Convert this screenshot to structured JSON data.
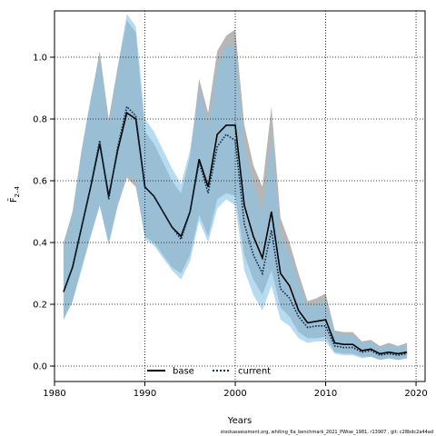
{
  "chart_data": {
    "type": "line",
    "xlabel": "Years",
    "ylabel": "F̄",
    "ylabel_sub": "2–4",
    "xlim": [
      1980,
      2021
    ],
    "ylim": [
      -0.05,
      1.15
    ],
    "xticks": [
      1980,
      1990,
      2000,
      2010,
      2020
    ],
    "yticks": [
      0.0,
      0.2,
      0.4,
      0.6,
      0.8,
      1.0
    ],
    "ytick_labels": [
      "0.0",
      "0.2",
      "0.4",
      "0.6",
      "0.8",
      "1.0"
    ],
    "grid": true,
    "legend_position": "bottom-center",
    "years": [
      1981,
      1982,
      1983,
      1984,
      1985,
      1986,
      1987,
      1988,
      1989,
      1990,
      1991,
      1992,
      1993,
      1994,
      1995,
      1996,
      1997,
      1998,
      1999,
      2000,
      2001,
      2002,
      2003,
      2004,
      2005,
      2006,
      2007,
      2008,
      2009,
      2010,
      2011,
      2012,
      2013,
      2014,
      2015,
      2016,
      2017,
      2018,
      2019
    ],
    "series": [
      {
        "name": "base",
        "color": "#000000",
        "band_color": "#a9a9a9",
        "style": "solid",
        "values": [
          0.24,
          0.32,
          0.45,
          0.58,
          0.72,
          0.55,
          0.7,
          0.82,
          0.8,
          0.58,
          0.55,
          0.5,
          0.45,
          0.42,
          0.5,
          0.67,
          0.58,
          0.75,
          0.78,
          0.78,
          0.52,
          0.42,
          0.35,
          0.5,
          0.3,
          0.26,
          0.18,
          0.14,
          0.145,
          0.15,
          0.075,
          0.07,
          0.07,
          0.05,
          0.055,
          0.04,
          0.045,
          0.04,
          0.045
        ],
        "upper": [
          0.4,
          0.5,
          0.7,
          0.86,
          1.02,
          0.8,
          0.97,
          1.12,
          1.08,
          0.76,
          0.72,
          0.66,
          0.6,
          0.56,
          0.68,
          0.93,
          0.82,
          1.02,
          1.07,
          1.09,
          0.78,
          0.65,
          0.58,
          0.84,
          0.48,
          0.4,
          0.3,
          0.21,
          0.22,
          0.235,
          0.115,
          0.11,
          0.11,
          0.08,
          0.085,
          0.065,
          0.075,
          0.065,
          0.075
        ],
        "lower": [
          0.15,
          0.21,
          0.32,
          0.42,
          0.52,
          0.4,
          0.52,
          0.61,
          0.58,
          0.42,
          0.4,
          0.36,
          0.32,
          0.3,
          0.36,
          0.49,
          0.42,
          0.54,
          0.56,
          0.55,
          0.36,
          0.28,
          0.23,
          0.31,
          0.19,
          0.16,
          0.11,
          0.09,
          0.09,
          0.095,
          0.045,
          0.04,
          0.04,
          0.03,
          0.03,
          0.02,
          0.025,
          0.02,
          0.025
        ]
      },
      {
        "name": "current",
        "color": "#0d2b4a",
        "band_color": "#87c5e8",
        "style": "dotted",
        "values": [
          0.24,
          0.32,
          0.45,
          0.58,
          0.73,
          0.54,
          0.71,
          0.84,
          0.81,
          0.58,
          0.55,
          0.5,
          0.45,
          0.41,
          0.5,
          0.66,
          0.56,
          0.71,
          0.75,
          0.73,
          0.46,
          0.36,
          0.3,
          0.44,
          0.25,
          0.22,
          0.16,
          0.125,
          0.13,
          0.13,
          0.065,
          0.06,
          0.06,
          0.045,
          0.05,
          0.035,
          0.04,
          0.035,
          0.04
        ],
        "upper": [
          0.39,
          0.5,
          0.7,
          0.87,
          1.0,
          0.78,
          0.97,
          1.14,
          1.1,
          0.8,
          0.76,
          0.7,
          0.64,
          0.59,
          0.7,
          0.9,
          0.78,
          0.97,
          1.04,
          1.03,
          0.71,
          0.59,
          0.5,
          0.75,
          0.42,
          0.36,
          0.27,
          0.19,
          0.2,
          0.21,
          0.105,
          0.1,
          0.1,
          0.075,
          0.08,
          0.06,
          0.07,
          0.06,
          0.07
        ],
        "lower": [
          0.15,
          0.21,
          0.31,
          0.42,
          0.52,
          0.39,
          0.52,
          0.62,
          0.6,
          0.41,
          0.39,
          0.35,
          0.31,
          0.28,
          0.34,
          0.47,
          0.4,
          0.51,
          0.54,
          0.52,
          0.31,
          0.23,
          0.18,
          0.26,
          0.15,
          0.13,
          0.09,
          0.075,
          0.08,
          0.08,
          0.04,
          0.035,
          0.035,
          0.025,
          0.03,
          0.02,
          0.025,
          0.02,
          0.025
        ]
      }
    ]
  },
  "footnote": "stockassessment.org,  whiting_6a_benchmark_2021_PWise_1981,  r13907 ,  git: c28bdc2a44ad"
}
